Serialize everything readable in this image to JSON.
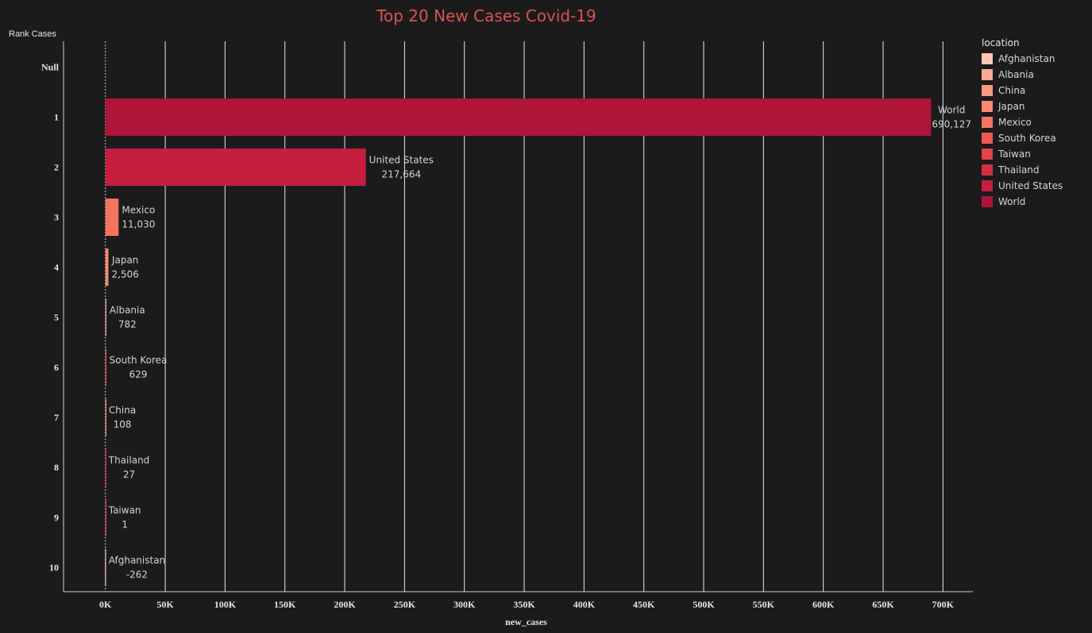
{
  "chart_data": {
    "type": "bar",
    "orientation": "horizontal",
    "title": "Top 20 New Cases Covid-19",
    "ylabel": "Rank Cases",
    "xlabel": "new_cases",
    "rank_labels": [
      "Null",
      "1",
      "2",
      "3",
      "4",
      "5",
      "6",
      "7",
      "8",
      "9",
      "10"
    ],
    "x_ticks": [
      0,
      50000,
      100000,
      150000,
      200000,
      250000,
      300000,
      350000,
      400000,
      450000,
      500000,
      550000,
      600000,
      650000,
      700000
    ],
    "x_tick_labels": [
      "0K",
      "50K",
      "100K",
      "150K",
      "200K",
      "250K",
      "300K",
      "350K",
      "400K",
      "450K",
      "500K",
      "550K",
      "600K",
      "650K",
      "700K"
    ],
    "xlim": [
      -35000,
      725000
    ],
    "grid": true,
    "legend_position": "right",
    "bars": [
      {
        "rank": "1",
        "location": "World",
        "value": 690127,
        "label": "690,127"
      },
      {
        "rank": "2",
        "location": "United States",
        "value": 217664,
        "label": "217,664"
      },
      {
        "rank": "3",
        "location": "Mexico",
        "value": 11030,
        "label": "11,030"
      },
      {
        "rank": "4",
        "location": "Japan",
        "value": 2506,
        "label": "2,506"
      },
      {
        "rank": "5",
        "location": "Albania",
        "value": 782,
        "label": "782"
      },
      {
        "rank": "6",
        "location": "South Korea",
        "value": 629,
        "label": "629"
      },
      {
        "rank": "7",
        "location": "China",
        "value": 108,
        "label": "108"
      },
      {
        "rank": "8",
        "location": "Thailand",
        "value": 27,
        "label": "27"
      },
      {
        "rank": "9",
        "location": "Taiwan",
        "value": 1,
        "label": "1"
      },
      {
        "rank": "10",
        "location": "Afghanistan",
        "value": -262,
        "label": "-262"
      }
    ],
    "legend": {
      "title": "location",
      "items": [
        {
          "name": "Afghanistan",
          "color": "#fcc4b6"
        },
        {
          "name": "Albania",
          "color": "#fba996"
        },
        {
          "name": "China",
          "color": "#f99a83"
        },
        {
          "name": "Japan",
          "color": "#f78b70"
        },
        {
          "name": "Mexico",
          "color": "#f47461"
        },
        {
          "name": "South Korea",
          "color": "#ee5a52"
        },
        {
          "name": "Taiwan",
          "color": "#e3434b"
        },
        {
          "name": "Thailand",
          "color": "#d62f45"
        },
        {
          "name": "United States",
          "color": "#c51e3f"
        },
        {
          "name": "World",
          "color": "#ad1539"
        }
      ]
    }
  },
  "colors": {
    "background": "#1b1b1c",
    "title": "#d9534f",
    "gridline": "#e8e8e8",
    "text": "#e6e6e6"
  }
}
